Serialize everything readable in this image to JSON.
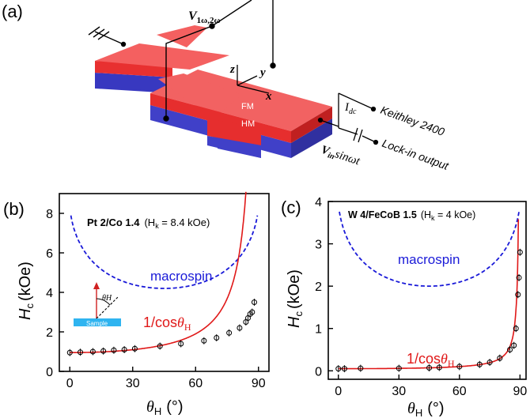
{
  "panel_a": {
    "label": "(a)",
    "voltage": "V",
    "voltage_sub": "1ω,2ω",
    "axis_z": "z",
    "axis_y": "y",
    "axis_x": "x",
    "layer_fm": "FM",
    "layer_hm": "HM",
    "current_main": "I",
    "current_sub": "dc",
    "instrument_1": "Keithley 2400",
    "source_main": "V",
    "source_sub": "in",
    "source_rest": "sinωt",
    "instrument_2": "Lock-in output",
    "colors": {
      "fm": "#f04040",
      "hm": "#4040c8"
    }
  },
  "inset": {
    "sample_label": "Sample",
    "angle_label": "θH"
  },
  "chart_data": [
    {
      "type": "scatter",
      "panel_label": "(b)",
      "title_main": "Pt 2/Co 1.4",
      "title_param": "(H",
      "title_param_sub": "k",
      "title_param_rest": " = 8.4 kOe)",
      "xlabel": "θH (°)",
      "xlabel_main": "θ",
      "xlabel_sub": "H",
      "xlabel_unit": "(°)",
      "ylabel_main": "H",
      "ylabel_sub": "c",
      "ylabel_unit": "(kOe)",
      "xlim": [
        -5,
        95
      ],
      "ylim": [
        0,
        9
      ],
      "xticks": [
        0,
        30,
        60,
        90
      ],
      "yticks": [
        0,
        2,
        4,
        6,
        8
      ],
      "curve_macrospin_label": "macrospin",
      "curve_cos_label_main": "1/cos",
      "curve_cos_label_theta": "θ",
      "curve_cos_label_sub": "H",
      "macrospin_hk": 8.4,
      "cos_h0": 0.95,
      "points": [
        {
          "x": 0,
          "y": 0.95
        },
        {
          "x": 5,
          "y": 0.97
        },
        {
          "x": 11,
          "y": 1.0
        },
        {
          "x": 16,
          "y": 1.03
        },
        {
          "x": 21,
          "y": 1.07
        },
        {
          "x": 26,
          "y": 1.1
        },
        {
          "x": 31,
          "y": 1.15
        },
        {
          "x": 43,
          "y": 1.28
        },
        {
          "x": 53,
          "y": 1.4
        },
        {
          "x": 64,
          "y": 1.55
        },
        {
          "x": 70,
          "y": 1.7
        },
        {
          "x": 76,
          "y": 1.95
        },
        {
          "x": 81,
          "y": 2.2
        },
        {
          "x": 84,
          "y": 2.5
        },
        {
          "x": 85,
          "y": 2.7
        },
        {
          "x": 86,
          "y": 2.9
        },
        {
          "x": 87,
          "y": 3.0
        },
        {
          "x": 88,
          "y": 3.5
        }
      ],
      "colors": {
        "macrospin": "#1a1ad8",
        "cos": "#e01818",
        "points": "#000000"
      }
    },
    {
      "type": "scatter",
      "panel_label": "(c)",
      "title_main": "W 4/FeCoB 1.5",
      "title_param": "(H",
      "title_param_sub": "k",
      "title_param_rest": " = 4 kOe)",
      "xlabel": "θH (°)",
      "xlabel_main": "θ",
      "xlabel_sub": "H",
      "xlabel_unit": "(°)",
      "ylabel_main": "H",
      "ylabel_sub": "c",
      "ylabel_unit": "(kOe)",
      "xlim": [
        -5,
        93
      ],
      "ylim": [
        -0.2,
        4
      ],
      "xticks": [
        0,
        30,
        60,
        90
      ],
      "yticks": [
        0,
        1,
        2,
        3,
        4
      ],
      "curve_macrospin_label": "macrospin",
      "curve_cos_label_main": "1/cos",
      "curve_cos_label_theta": "θ",
      "curve_cos_label_sub": "H",
      "macrospin_hk": 4,
      "cos_h0": 0.05,
      "points": [
        {
          "x": 0,
          "y": 0.05
        },
        {
          "x": 3,
          "y": 0.05
        },
        {
          "x": 11,
          "y": 0.06
        },
        {
          "x": 30,
          "y": 0.06
        },
        {
          "x": 45,
          "y": 0.07
        },
        {
          "x": 50,
          "y": 0.08
        },
        {
          "x": 60,
          "y": 0.1
        },
        {
          "x": 70,
          "y": 0.15
        },
        {
          "x": 75,
          "y": 0.2
        },
        {
          "x": 80,
          "y": 0.3
        },
        {
          "x": 85,
          "y": 0.5
        },
        {
          "x": 87,
          "y": 0.6
        },
        {
          "x": 88,
          "y": 1.0
        },
        {
          "x": 89,
          "y": 1.8
        },
        {
          "x": 89.5,
          "y": 2.2
        },
        {
          "x": 90,
          "y": 2.8
        }
      ],
      "colors": {
        "macrospin": "#1a1ad8",
        "cos": "#e01818",
        "points": "#000000"
      }
    }
  ]
}
